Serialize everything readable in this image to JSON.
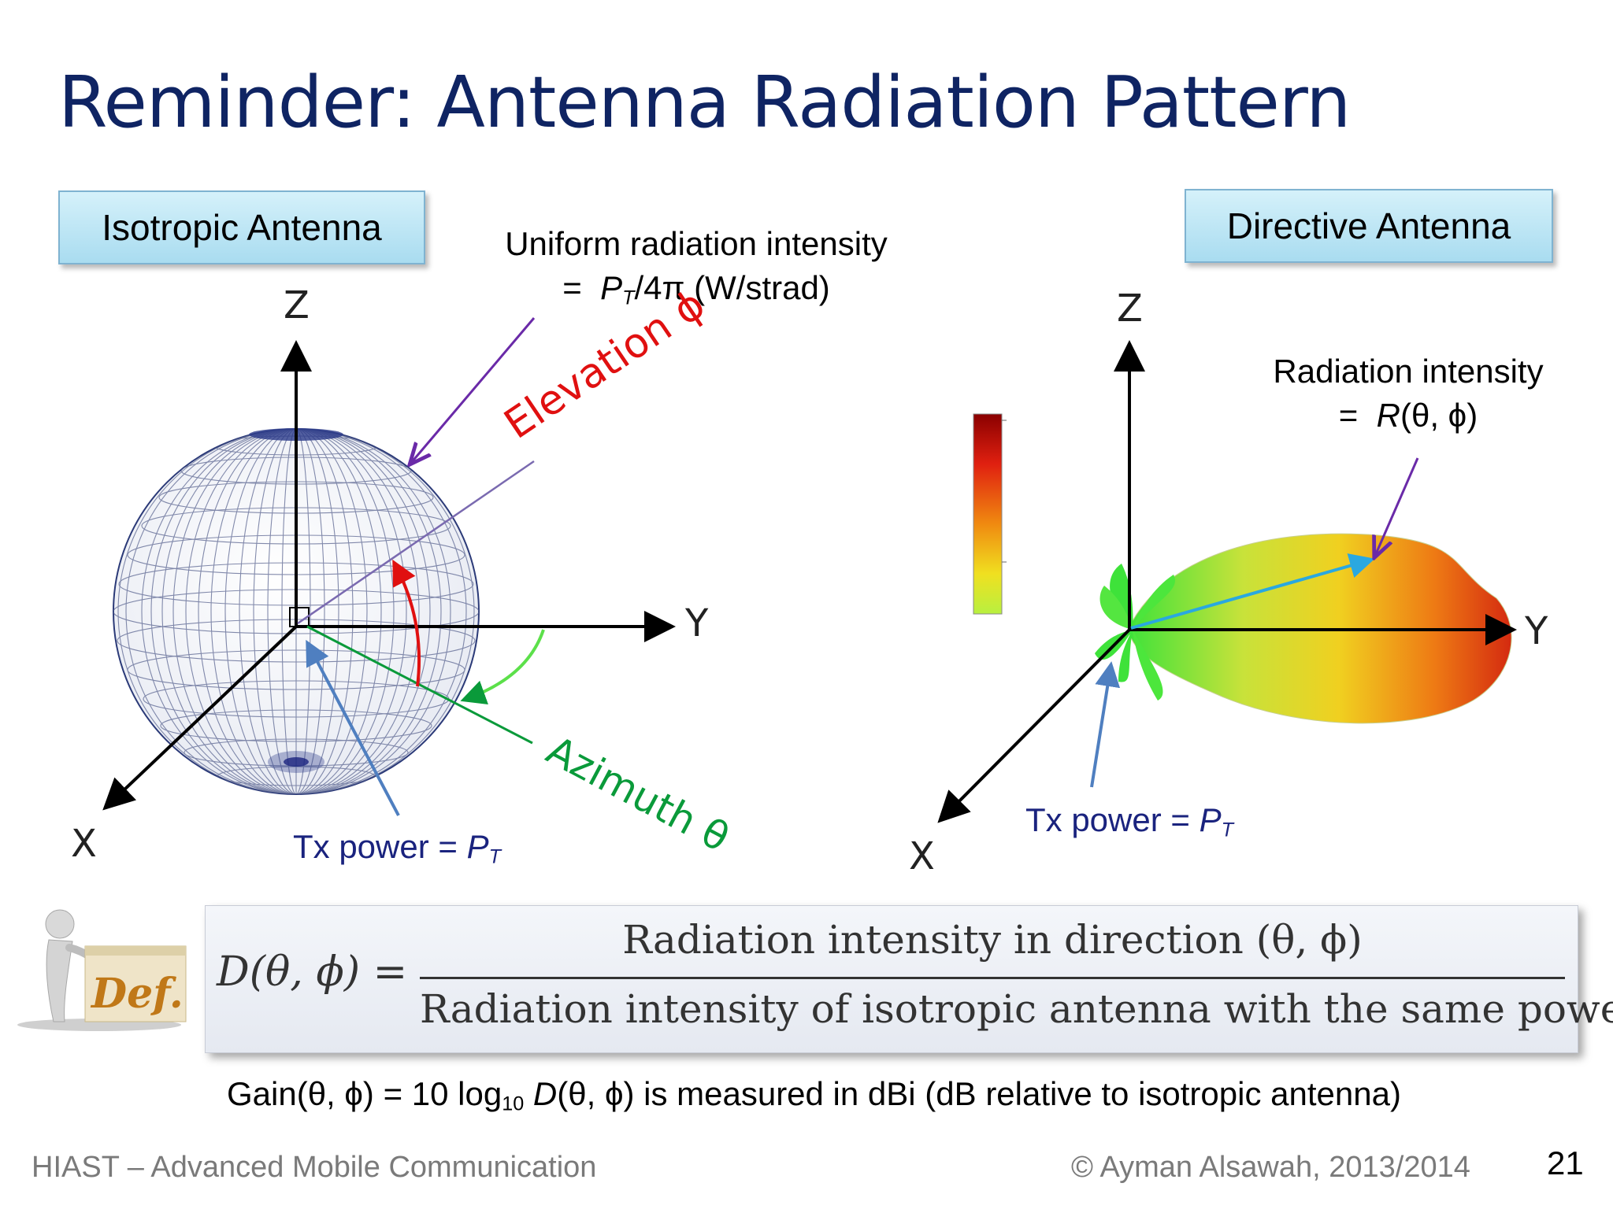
{
  "title": "Reminder: Antenna Radiation Pattern",
  "left_panel": {
    "label": "Isotropic Antenna",
    "note_line1": "Uniform radiation intensity",
    "note_eq": "=",
    "note_P": "P",
    "note_sub": "T",
    "note_rest": "/4π  (W/strad)",
    "elevation": "Elevation  ϕ",
    "azimuth": "Azimuth  θ",
    "tx_label": "Tx power = ",
    "tx_P": "P",
    "tx_sub": "T",
    "axes": {
      "z": "Z",
      "y": "Y",
      "x": "X"
    }
  },
  "right_panel": {
    "label": "Directive Antenna",
    "note_line1": "Radiation intensity",
    "note_eq": "=",
    "note_R": "R",
    "note_rest": "(θ, ϕ)",
    "tx_label": "Tx power = ",
    "tx_P": "P",
    "tx_sub": "T",
    "axes": {
      "z": "Z",
      "y": "Y",
      "x": "X"
    }
  },
  "definition": {
    "icon_text": "Def.",
    "lhs": "D(θ, ϕ) =",
    "numerator": "Radiation intensity in direction (θ, ϕ)",
    "denominator": "Radiation intensity of isotropic antenna with the same power"
  },
  "gain": {
    "part1": "Gain(θ, ϕ) = 10 log",
    "sub": "10",
    "D": "D",
    "part2": "(θ, ϕ)  is measured in dBi (dB relative to isotropic antenna)"
  },
  "footer": {
    "left": "HIAST  – Advanced Mobile Communication",
    "right": "© Ayman Alsawah, 2013/2014",
    "page": "21"
  },
  "colors": {
    "title": "#0f2463",
    "elevation": "#e01010",
    "azimuth": "#0a9a3a",
    "arrow_purple": "#6a2aa8",
    "arrow_blue": "#4f7fc0",
    "arrow_cyan": "#2aa8e0"
  }
}
